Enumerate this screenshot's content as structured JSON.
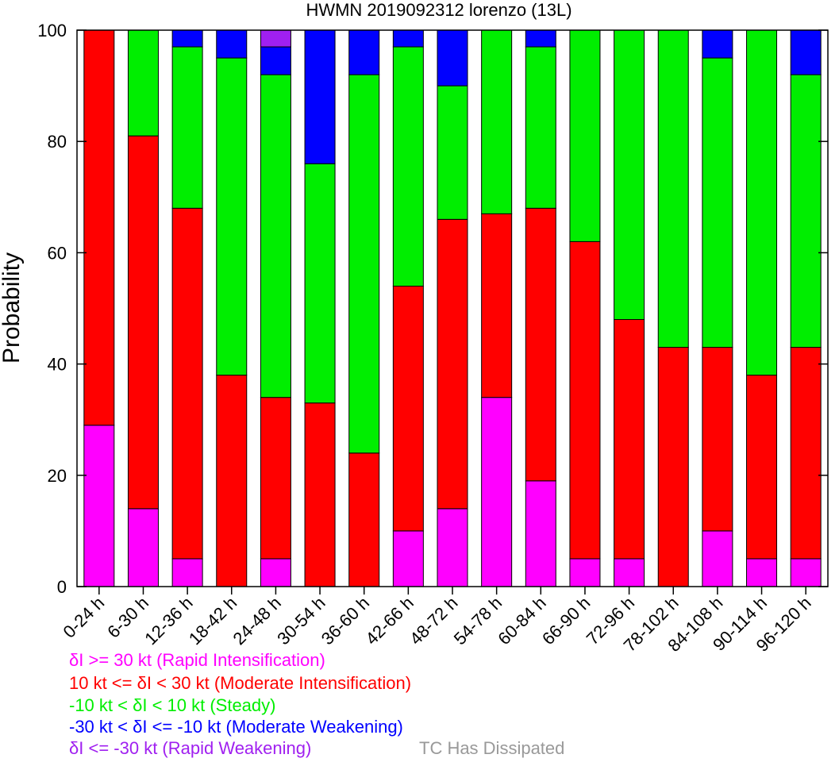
{
  "chart_data": {
    "type": "bar",
    "stacked": true,
    "title": "HWMN 2019092312 lorenzo (13L)",
    "xlabel": "",
    "ylabel": "Probability",
    "ylim": [
      0,
      100
    ],
    "yticks": [
      0,
      20,
      40,
      60,
      80,
      100
    ],
    "grid": false,
    "categories": [
      "0-24 h",
      "6-30 h",
      "12-36 h",
      "18-42 h",
      "24-48 h",
      "30-54 h",
      "36-60 h",
      "42-66 h",
      "48-72 h",
      "54-78 h",
      "60-84 h",
      "66-90 h",
      "72-96 h",
      "78-102 h",
      "84-108 h",
      "90-114 h",
      "96-120 h"
    ],
    "series": [
      {
        "name": "δI >= 30 kt (Rapid Intensification)",
        "color": "#ff00ff",
        "values": [
          29,
          14,
          5,
          0,
          5,
          0,
          0,
          10,
          14,
          34,
          19,
          5,
          5,
          0,
          10,
          5,
          5
        ]
      },
      {
        "name": "10 kt <= δI < 30 kt (Moderate Intensification)",
        "color": "#ff0000",
        "values": [
          71,
          67,
          63,
          38,
          29,
          33,
          24,
          44,
          52,
          33,
          49,
          57,
          43,
          43,
          33,
          33,
          38
        ]
      },
      {
        "name": "-10 kt < δI < 10 kt (Steady)",
        "color": "#00ee00",
        "values": [
          0,
          19,
          29,
          57,
          58,
          43,
          68,
          43,
          24,
          33,
          29,
          38,
          52,
          57,
          52,
          62,
          49
        ]
      },
      {
        "name": "-30 kt < δI <= -10 kt (Moderate Weakening)",
        "color": "#0000ff",
        "values": [
          0,
          0,
          3,
          5,
          5,
          24,
          8,
          3,
          10,
          0,
          3,
          0,
          0,
          0,
          5,
          0,
          8
        ]
      },
      {
        "name": "δI <= -30 kt (Rapid Weakening)",
        "color": "#a020f0",
        "values": [
          0,
          0,
          0,
          0,
          3,
          0,
          0,
          0,
          0,
          0,
          0,
          0,
          0,
          0,
          0,
          0,
          0
        ]
      },
      {
        "name": "TC Has Dissipated",
        "color": "#999999",
        "values": [
          0,
          0,
          0,
          0,
          0,
          0,
          0,
          0,
          0,
          0,
          0,
          0,
          0,
          0,
          0,
          0,
          0
        ]
      }
    ],
    "legend": {
      "placement": "bottom-left",
      "entries": [
        {
          "text": "δI >= 30 kt (Rapid Intensification)",
          "color": "#ff00ff"
        },
        {
          "text": "10 kt <= δI < 30 kt (Moderate Intensification)",
          "color": "#ff0000"
        },
        {
          "text": "-10 kt < δI < 10 kt (Steady)",
          "color": "#00ee00"
        },
        {
          "text": "-30 kt < δI <= -10 kt (Moderate Weakening)",
          "color": "#0000ff"
        },
        {
          "text": "δI <= -30 kt (Rapid Weakening)",
          "color": "#a020f0"
        },
        {
          "text": "TC Has Dissipated",
          "color": "#999999"
        }
      ]
    }
  }
}
